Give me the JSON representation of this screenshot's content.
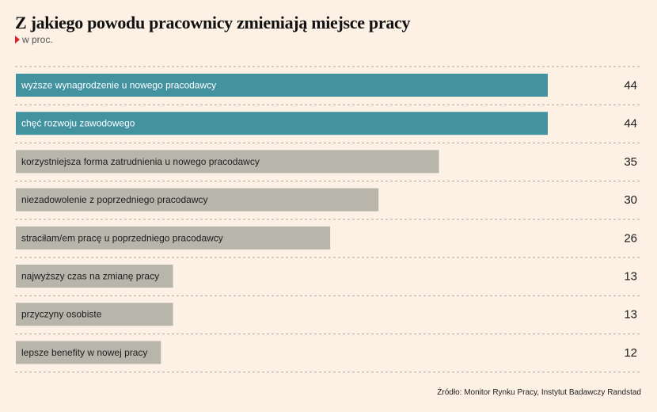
{
  "title": "Z jakiego powodu pracownicy zmieniają miejsce pracy",
  "subtitle": "w proc.",
  "source": "Źródło: Monitor Rynku Pracy, Instytut Badawczy Randstad",
  "colors": {
    "background": "#fdf0e4",
    "highlight": "#4392a0",
    "default": "#b8b5ab",
    "gridline": "#b0a9a0",
    "marker": "#d9232d"
  },
  "chart_data": {
    "type": "bar",
    "orientation": "horizontal",
    "categories": [
      "wyższe wynagrodzenie u nowego pracodawcy",
      "chęć rozwoju zawodowego",
      "korzystniejsza forma zatrudnienia u nowego pracodawcy",
      "niezadowolenie z poprzedniego pracodawcy",
      "straciłam/em pracę u poprzedniego pracodawcy",
      "najwyższy czas na zmianę pracy",
      "przyczyny osobiste",
      "lepsze benefity w nowej pracy"
    ],
    "values": [
      44,
      44,
      35,
      30,
      26,
      13,
      13,
      12
    ],
    "value_labels": [
      "44",
      "44",
      "35",
      "30",
      "26",
      "13",
      "13",
      "12"
    ],
    "highlighted": [
      true,
      true,
      false,
      false,
      false,
      false,
      false,
      false
    ],
    "xlim": [
      0,
      44
    ],
    "grid": "dashed separators between rows",
    "legend": "none"
  }
}
